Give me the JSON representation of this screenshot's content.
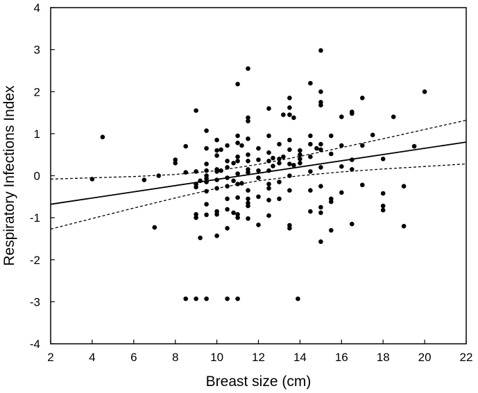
{
  "chart_data": {
    "type": "scatter",
    "title": "",
    "xlabel": "Breast size (cm)",
    "ylabel": "Respiratory Infections Index",
    "xlim": [
      2,
      22
    ],
    "ylim": [
      -4,
      4
    ],
    "x_ticks": [
      2,
      4,
      6,
      8,
      10,
      12,
      14,
      16,
      18,
      20,
      22
    ],
    "y_ticks": [
      -4,
      -3,
      -2,
      -1,
      0,
      1,
      2,
      3,
      4
    ],
    "grid": false,
    "legend": "none",
    "points": [
      [
        4.0,
        -0.08
      ],
      [
        4.5,
        0.92
      ],
      [
        6.5,
        -0.1
      ],
      [
        7.0,
        -1.23
      ],
      [
        7.2,
        0.0
      ],
      [
        8.0,
        0.3
      ],
      [
        8.0,
        0.38
      ],
      [
        8.5,
        0.7
      ],
      [
        8.5,
        0.08
      ],
      [
        8.5,
        -2.93
      ],
      [
        9.0,
        1.55
      ],
      [
        9.0,
        0.1
      ],
      [
        9.0,
        -0.2
      ],
      [
        9.0,
        -0.27
      ],
      [
        9.0,
        -0.92
      ],
      [
        9.0,
        -1.0
      ],
      [
        9.0,
        -2.93
      ],
      [
        9.2,
        -1.48
      ],
      [
        9.2,
        -0.12
      ],
      [
        9.5,
        1.07
      ],
      [
        9.5,
        0.65
      ],
      [
        9.5,
        0.28
      ],
      [
        9.5,
        0.12
      ],
      [
        9.5,
        0.0
      ],
      [
        9.5,
        -0.07
      ],
      [
        9.5,
        -0.15
      ],
      [
        9.5,
        -0.37
      ],
      [
        9.5,
        -0.68
      ],
      [
        9.5,
        -0.93
      ],
      [
        9.5,
        -2.93
      ],
      [
        10.0,
        0.85
      ],
      [
        10.0,
        0.6
      ],
      [
        10.0,
        0.48
      ],
      [
        10.0,
        0.15
      ],
      [
        10.0,
        0.1
      ],
      [
        10.0,
        -0.1
      ],
      [
        10.0,
        -0.3
      ],
      [
        10.0,
        -0.85
      ],
      [
        10.0,
        -0.92
      ],
      [
        10.0,
        -1.43
      ],
      [
        10.2,
        0.12
      ],
      [
        10.2,
        0.62
      ],
      [
        10.5,
        0.72
      ],
      [
        10.5,
        0.35
      ],
      [
        10.5,
        0.2
      ],
      [
        10.5,
        -0.05
      ],
      [
        10.5,
        -0.25
      ],
      [
        10.5,
        -0.55
      ],
      [
        10.5,
        -0.8
      ],
      [
        10.5,
        -1.25
      ],
      [
        10.5,
        -2.93
      ],
      [
        10.8,
        0.3
      ],
      [
        10.8,
        -0.12
      ],
      [
        10.8,
        -0.88
      ],
      [
        11.0,
        2.18
      ],
      [
        11.0,
        0.95
      ],
      [
        11.0,
        0.78
      ],
      [
        11.0,
        0.45
      ],
      [
        11.0,
        0.35
      ],
      [
        11.0,
        0.05
      ],
      [
        11.0,
        -0.2
      ],
      [
        11.0,
        -0.52
      ],
      [
        11.0,
        -0.92
      ],
      [
        11.0,
        -1.0
      ],
      [
        11.0,
        -2.93
      ],
      [
        11.2,
        -0.18
      ],
      [
        11.2,
        0.72
      ],
      [
        11.5,
        2.55
      ],
      [
        11.5,
        1.38
      ],
      [
        11.5,
        1.3
      ],
      [
        11.5,
        0.88
      ],
      [
        11.5,
        0.5
      ],
      [
        11.5,
        0.35
      ],
      [
        11.5,
        0.15
      ],
      [
        11.5,
        0.08
      ],
      [
        11.5,
        -0.35
      ],
      [
        11.5,
        -0.55
      ],
      [
        11.5,
        -0.65
      ],
      [
        11.5,
        -0.72
      ],
      [
        11.5,
        -1.02
      ],
      [
        12.0,
        0.65
      ],
      [
        12.0,
        0.38
      ],
      [
        12.0,
        0.12
      ],
      [
        12.0,
        -0.05
      ],
      [
        12.0,
        -0.5
      ],
      [
        12.0,
        -1.17
      ],
      [
        12.5,
        1.6
      ],
      [
        12.5,
        0.95
      ],
      [
        12.5,
        0.55
      ],
      [
        12.5,
        0.35
      ],
      [
        12.5,
        0.12
      ],
      [
        12.5,
        -0.2
      ],
      [
        12.5,
        -0.3
      ],
      [
        12.5,
        -0.58
      ],
      [
        12.5,
        -0.95
      ],
      [
        12.7,
        0.42
      ],
      [
        12.7,
        0.23
      ],
      [
        13.0,
        0.75
      ],
      [
        13.0,
        0.4
      ],
      [
        13.0,
        0.3
      ],
      [
        13.0,
        -0.15
      ],
      [
        13.0,
        -0.55
      ],
      [
        13.2,
        1.45
      ],
      [
        13.2,
        0.45
      ],
      [
        13.5,
        1.85
      ],
      [
        13.5,
        1.62
      ],
      [
        13.5,
        1.45
      ],
      [
        13.5,
        0.85
      ],
      [
        13.5,
        0.62
      ],
      [
        13.5,
        0.28
      ],
      [
        13.5,
        0.0
      ],
      [
        13.5,
        -0.35
      ],
      [
        13.5,
        -1.18
      ],
      [
        13.5,
        -1.25
      ],
      [
        13.7,
        0.25
      ],
      [
        13.7,
        1.38
      ],
      [
        13.9,
        -2.93
      ],
      [
        14.0,
        0.6
      ],
      [
        14.0,
        0.5
      ],
      [
        14.0,
        0.4
      ],
      [
        14.0,
        0.3
      ],
      [
        14.5,
        2.2
      ],
      [
        14.5,
        0.95
      ],
      [
        14.5,
        0.75
      ],
      [
        14.5,
        0.45
      ],
      [
        14.5,
        0.1
      ],
      [
        14.5,
        -0.35
      ],
      [
        14.5,
        -0.85
      ],
      [
        14.8,
        0.65
      ],
      [
        15.0,
        2.98
      ],
      [
        15.0,
        2.0
      ],
      [
        15.0,
        1.75
      ],
      [
        15.0,
        1.68
      ],
      [
        15.0,
        0.75
      ],
      [
        15.0,
        0.62
      ],
      [
        15.0,
        0.2
      ],
      [
        15.0,
        -0.25
      ],
      [
        15.0,
        -0.75
      ],
      [
        15.0,
        -0.88
      ],
      [
        15.0,
        -1.57
      ],
      [
        15.5,
        0.95
      ],
      [
        15.5,
        0.52
      ],
      [
        15.5,
        -0.55
      ],
      [
        15.5,
        -0.62
      ],
      [
        15.5,
        -1.3
      ],
      [
        16.0,
        1.4
      ],
      [
        16.0,
        0.72
      ],
      [
        16.0,
        0.22
      ],
      [
        16.0,
        -0.4
      ],
      [
        16.5,
        1.52
      ],
      [
        16.5,
        1.48
      ],
      [
        16.5,
        0.38
      ],
      [
        16.5,
        0.15
      ],
      [
        16.5,
        -1.15
      ],
      [
        17.0,
        1.85
      ],
      [
        17.0,
        0.72
      ],
      [
        17.0,
        -0.22
      ],
      [
        17.5,
        0.97
      ],
      [
        18.0,
        0.4
      ],
      [
        18.0,
        -0.42
      ],
      [
        18.0,
        -0.72
      ],
      [
        18.0,
        -0.82
      ],
      [
        18.5,
        1.4
      ],
      [
        19.0,
        -0.25
      ],
      [
        19.0,
        -1.2
      ],
      [
        19.5,
        0.7
      ],
      [
        20.0,
        2.0
      ]
    ],
    "regression": {
      "x": [
        2,
        22
      ],
      "y": [
        -0.68,
        0.8
      ]
    },
    "ci_upper": {
      "x": [
        2,
        4,
        6,
        8,
        10,
        12,
        14,
        16,
        18,
        20,
        22
      ],
      "y": [
        -0.08,
        -0.05,
        -0.02,
        0.03,
        0.12,
        0.27,
        0.46,
        0.67,
        0.88,
        1.1,
        1.32
      ]
    },
    "ci_lower": {
      "x": [
        2,
        4,
        6,
        8,
        10,
        12,
        14,
        16,
        18,
        20,
        22
      ],
      "y": [
        -1.27,
        -1.02,
        -0.77,
        -0.53,
        -0.3,
        -0.12,
        0.0,
        0.09,
        0.16,
        0.22,
        0.28
      ]
    }
  }
}
